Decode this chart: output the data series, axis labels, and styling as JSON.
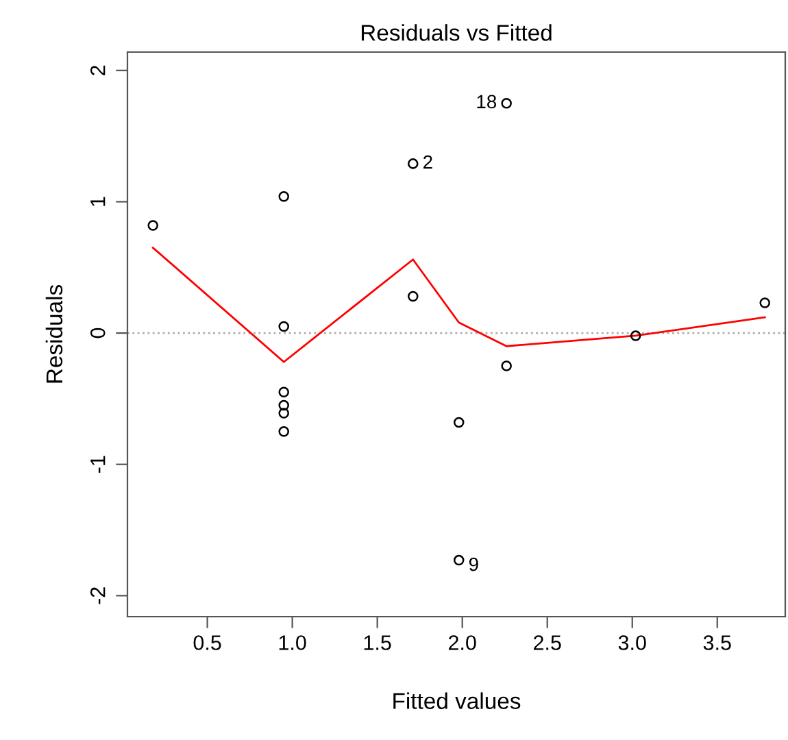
{
  "chart_data": {
    "type": "scatter",
    "title": "Residuals vs Fitted",
    "xlabel": "Fitted values",
    "ylabel": "Residuals",
    "xlim": [
      0.03,
      3.9
    ],
    "ylim": [
      -2.16,
      2.14
    ],
    "xticks": [
      0.5,
      {
        "value": 1,
        "label": "1.0"
      },
      1.5,
      {
        "value": 2,
        "label": "2.0"
      },
      2.5,
      {
        "value": 3,
        "label": "3.0"
      },
      3.5
    ],
    "yticks": [
      -2,
      -1,
      0,
      1,
      2
    ],
    "grid": false,
    "series": [
      {
        "marker": "circle",
        "color": "#000000",
        "x": [
          0.18,
          0.95,
          0.95,
          0.95,
          0.95,
          0.95,
          0.95,
          1.71,
          1.71,
          1.98,
          1.98,
          2.26,
          2.26,
          3.02,
          3.78
        ],
        "values": [
          0.82,
          1.04,
          0.05,
          -0.45,
          -0.55,
          -0.61,
          -0.75,
          1.29,
          0.28,
          -0.68,
          -1.73,
          1.75,
          -0.25,
          -0.02,
          0.23
        ]
      },
      {
        "type": "line",
        "marker": "none",
        "color": "#ff0000",
        "x": [
          0.18,
          0.95,
          1.71,
          1.98,
          2.26,
          3.02,
          3.78
        ],
        "values": [
          0.65,
          -0.22,
          0.56,
          0.08,
          -0.1,
          -0.02,
          0.12
        ]
      }
    ],
    "ref_lines": [
      {
        "axis": "y",
        "value": 0,
        "color": "#aaaaaa",
        "line_style": "dotted"
      }
    ],
    "annotations": [
      {
        "text": "18",
        "x": 2.26,
        "y": 1.75
      },
      {
        "text": "2",
        "x": 1.71,
        "y": 1.29
      },
      {
        "text": "9",
        "x": 1.98,
        "y": -1.73
      }
    ]
  }
}
